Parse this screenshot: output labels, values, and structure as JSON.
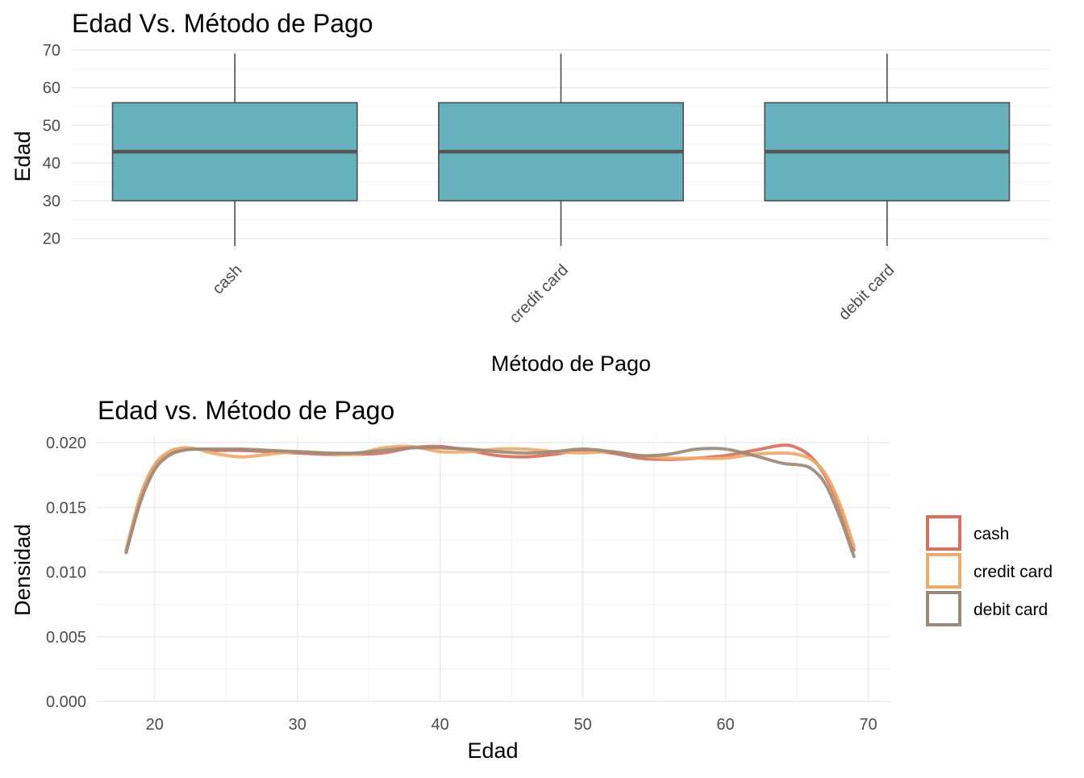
{
  "chart_data": [
    {
      "type": "boxplot",
      "title": "Edad Vs. Método de Pago",
      "xlabel": "Método de Pago",
      "ylabel": "Edad",
      "categories": [
        "cash",
        "credit card",
        "debit card"
      ],
      "boxes": [
        {
          "category": "cash",
          "min": 18,
          "q1": 30,
          "median": 43,
          "q3": 56,
          "max": 69
        },
        {
          "category": "credit card",
          "min": 18,
          "q1": 30,
          "median": 43,
          "q3": 56,
          "max": 69
        },
        {
          "category": "debit card",
          "min": 18,
          "q1": 30,
          "median": 43,
          "q3": 56,
          "max": 69
        }
      ],
      "ylim": [
        16.5,
        70
      ],
      "yticks": [
        "20",
        "30",
        "40",
        "50",
        "60",
        "70"
      ],
      "grid": true,
      "colors": {
        "box_fill": "#5aa9b9",
        "box_stroke": "#4d4d4d",
        "median": "#555555"
      }
    },
    {
      "type": "line",
      "title": "Edad vs. Método de Pago",
      "xlabel": "Edad",
      "ylabel": "Densidad",
      "xlim": [
        16,
        71.5
      ],
      "ylim": [
        0,
        0.0205
      ],
      "xticks": [
        "20",
        "30",
        "40",
        "50",
        "60",
        "70"
      ],
      "yticks": [
        "0.000",
        "0.005",
        "0.010",
        "0.015",
        "0.020"
      ],
      "grid": true,
      "legend_position": "right",
      "series": [
        {
          "name": "cash",
          "color": "#d9705f",
          "x": [
            18,
            19,
            20,
            21,
            22,
            23,
            24,
            26,
            28,
            30,
            32,
            34,
            36,
            38,
            40,
            42,
            44,
            46,
            48,
            50,
            52,
            54,
            56,
            58,
            60,
            62,
            64,
            65,
            66,
            67,
            68,
            69
          ],
          "y": [
            0.0117,
            0.0158,
            0.0182,
            0.0192,
            0.0195,
            0.0195,
            0.0194,
            0.0194,
            0.0193,
            0.0192,
            0.0191,
            0.0191,
            0.0192,
            0.0196,
            0.0197,
            0.0194,
            0.019,
            0.0189,
            0.0191,
            0.0194,
            0.0192,
            0.0188,
            0.0187,
            0.0188,
            0.019,
            0.0194,
            0.0198,
            0.0196,
            0.0189,
            0.0174,
            0.015,
            0.0117
          ]
        },
        {
          "name": "credit card",
          "color": "#eeaa6b",
          "x": [
            18,
            19,
            20,
            21,
            22,
            23,
            24,
            26,
            28,
            30,
            32,
            34,
            36,
            38,
            40,
            42,
            44,
            46,
            48,
            50,
            52,
            54,
            56,
            58,
            60,
            62,
            64,
            65,
            66,
            67,
            68,
            69
          ],
          "y": [
            0.0117,
            0.0159,
            0.0183,
            0.0193,
            0.0196,
            0.0195,
            0.0192,
            0.0189,
            0.0191,
            0.0193,
            0.0192,
            0.0191,
            0.0196,
            0.0197,
            0.0193,
            0.0193,
            0.0195,
            0.0195,
            0.0193,
            0.0192,
            0.0193,
            0.019,
            0.0188,
            0.0188,
            0.0188,
            0.0191,
            0.0192,
            0.0191,
            0.0187,
            0.0176,
            0.0153,
            0.012
          ]
        },
        {
          "name": "debit card",
          "color": "#9c8a78",
          "x": [
            18,
            19,
            20,
            21,
            22,
            23,
            24,
            26,
            28,
            30,
            32,
            34,
            36,
            38,
            40,
            42,
            44,
            46,
            48,
            50,
            52,
            54,
            56,
            58,
            60,
            62,
            64,
            65,
            66,
            67,
            68,
            69
          ],
          "y": [
            0.0115,
            0.0154,
            0.0179,
            0.019,
            0.0194,
            0.0195,
            0.0195,
            0.0195,
            0.0194,
            0.0193,
            0.0192,
            0.0192,
            0.0194,
            0.0196,
            0.0196,
            0.0195,
            0.0193,
            0.0192,
            0.0193,
            0.0195,
            0.0193,
            0.019,
            0.0191,
            0.0195,
            0.0195,
            0.019,
            0.0184,
            0.0183,
            0.018,
            0.0168,
            0.0143,
            0.0112
          ]
        }
      ]
    }
  ]
}
